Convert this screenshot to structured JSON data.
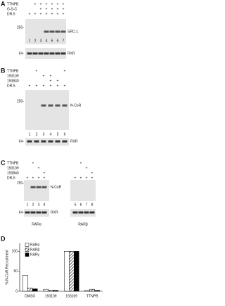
{
  "panels": [
    {
      "label": "A",
      "rows": [
        {
          "name": "TTNPB",
          "signs": [
            null,
            "+",
            "+",
            "+",
            "+",
            "+",
            "+"
          ]
        },
        {
          "name": "G-S-C",
          "signs": [
            null,
            null,
            "+",
            "+",
            "+",
            "+",
            "+"
          ]
        },
        {
          "name": "DR-5",
          "signs": [
            "+",
            "+",
            "+",
            "+",
            "+",
            "+",
            "+"
          ]
        }
      ],
      "markers": [
        "250-",
        "64-"
      ],
      "bands": [
        "SRC-1",
        "RXR"
      ],
      "lanes": [
        "1",
        "2",
        "3",
        "4",
        "5",
        "6",
        "7"
      ]
    },
    {
      "label": "B",
      "rows": [
        {
          "name": "TTNPB",
          "signs": [
            null,
            "+",
            null,
            null,
            null,
            "+"
          ]
        },
        {
          "name": "193109",
          "signs": [
            null,
            null,
            "+",
            "+",
            null,
            null
          ]
        },
        {
          "name": "193840",
          "signs": [
            null,
            null,
            null,
            "+",
            "+",
            null
          ]
        },
        {
          "name": "DR-5",
          "signs": [
            "+",
            "+",
            "+",
            "+",
            "+",
            "+"
          ]
        }
      ],
      "markers": [
        "250-",
        "64-"
      ],
      "bands": [
        "N-CoR",
        "RXR"
      ],
      "lanes": [
        "1",
        "2",
        "3",
        "4",
        "5",
        "6"
      ]
    },
    {
      "label": "C",
      "rows": [
        {
          "name": "TTNPB",
          "signs": [
            null,
            "+",
            null,
            null,
            null,
            "+",
            null,
            null
          ]
        },
        {
          "name": "193109",
          "signs": [
            null,
            null,
            "+",
            null,
            null,
            null,
            "+",
            null
          ]
        },
        {
          "name": "193840",
          "signs": [
            null,
            null,
            null,
            "+",
            null,
            null,
            null,
            "+"
          ]
        },
        {
          "name": "DR-5",
          "signs": [
            "+",
            "+",
            "+",
            "+",
            "+",
            "+",
            "+",
            "+"
          ]
        }
      ],
      "markers": [
        "250-",
        "64-"
      ],
      "bands": [
        "N-CoR",
        "RXR"
      ],
      "lanes": [
        "1",
        "2",
        "3",
        "4",
        "5",
        "6",
        "7",
        "8"
      ],
      "receptors": [
        "RARα",
        "RARβ"
      ]
    }
  ],
  "panel_d": {
    "label": "D",
    "y_label": "% N-CoR Recruitment",
    "ylim": [
      0,
      120
    ],
    "yticks": [
      0,
      50,
      100
    ],
    "categories": [
      "DMSO",
      "193109",
      "193109",
      "TTNPB"
    ],
    "series": [
      {
        "name": "RARα",
        "color": "#ffffff",
        "values": [
          40,
          5,
          100,
          3
        ]
      },
      {
        "name": "RARβ",
        "color": "hatch",
        "values": [
          8,
          3,
          100,
          5
        ]
      },
      {
        "name": "RARγ",
        "color": "#000000",
        "values": [
          6,
          2,
          100,
          2
        ]
      }
    ]
  }
}
